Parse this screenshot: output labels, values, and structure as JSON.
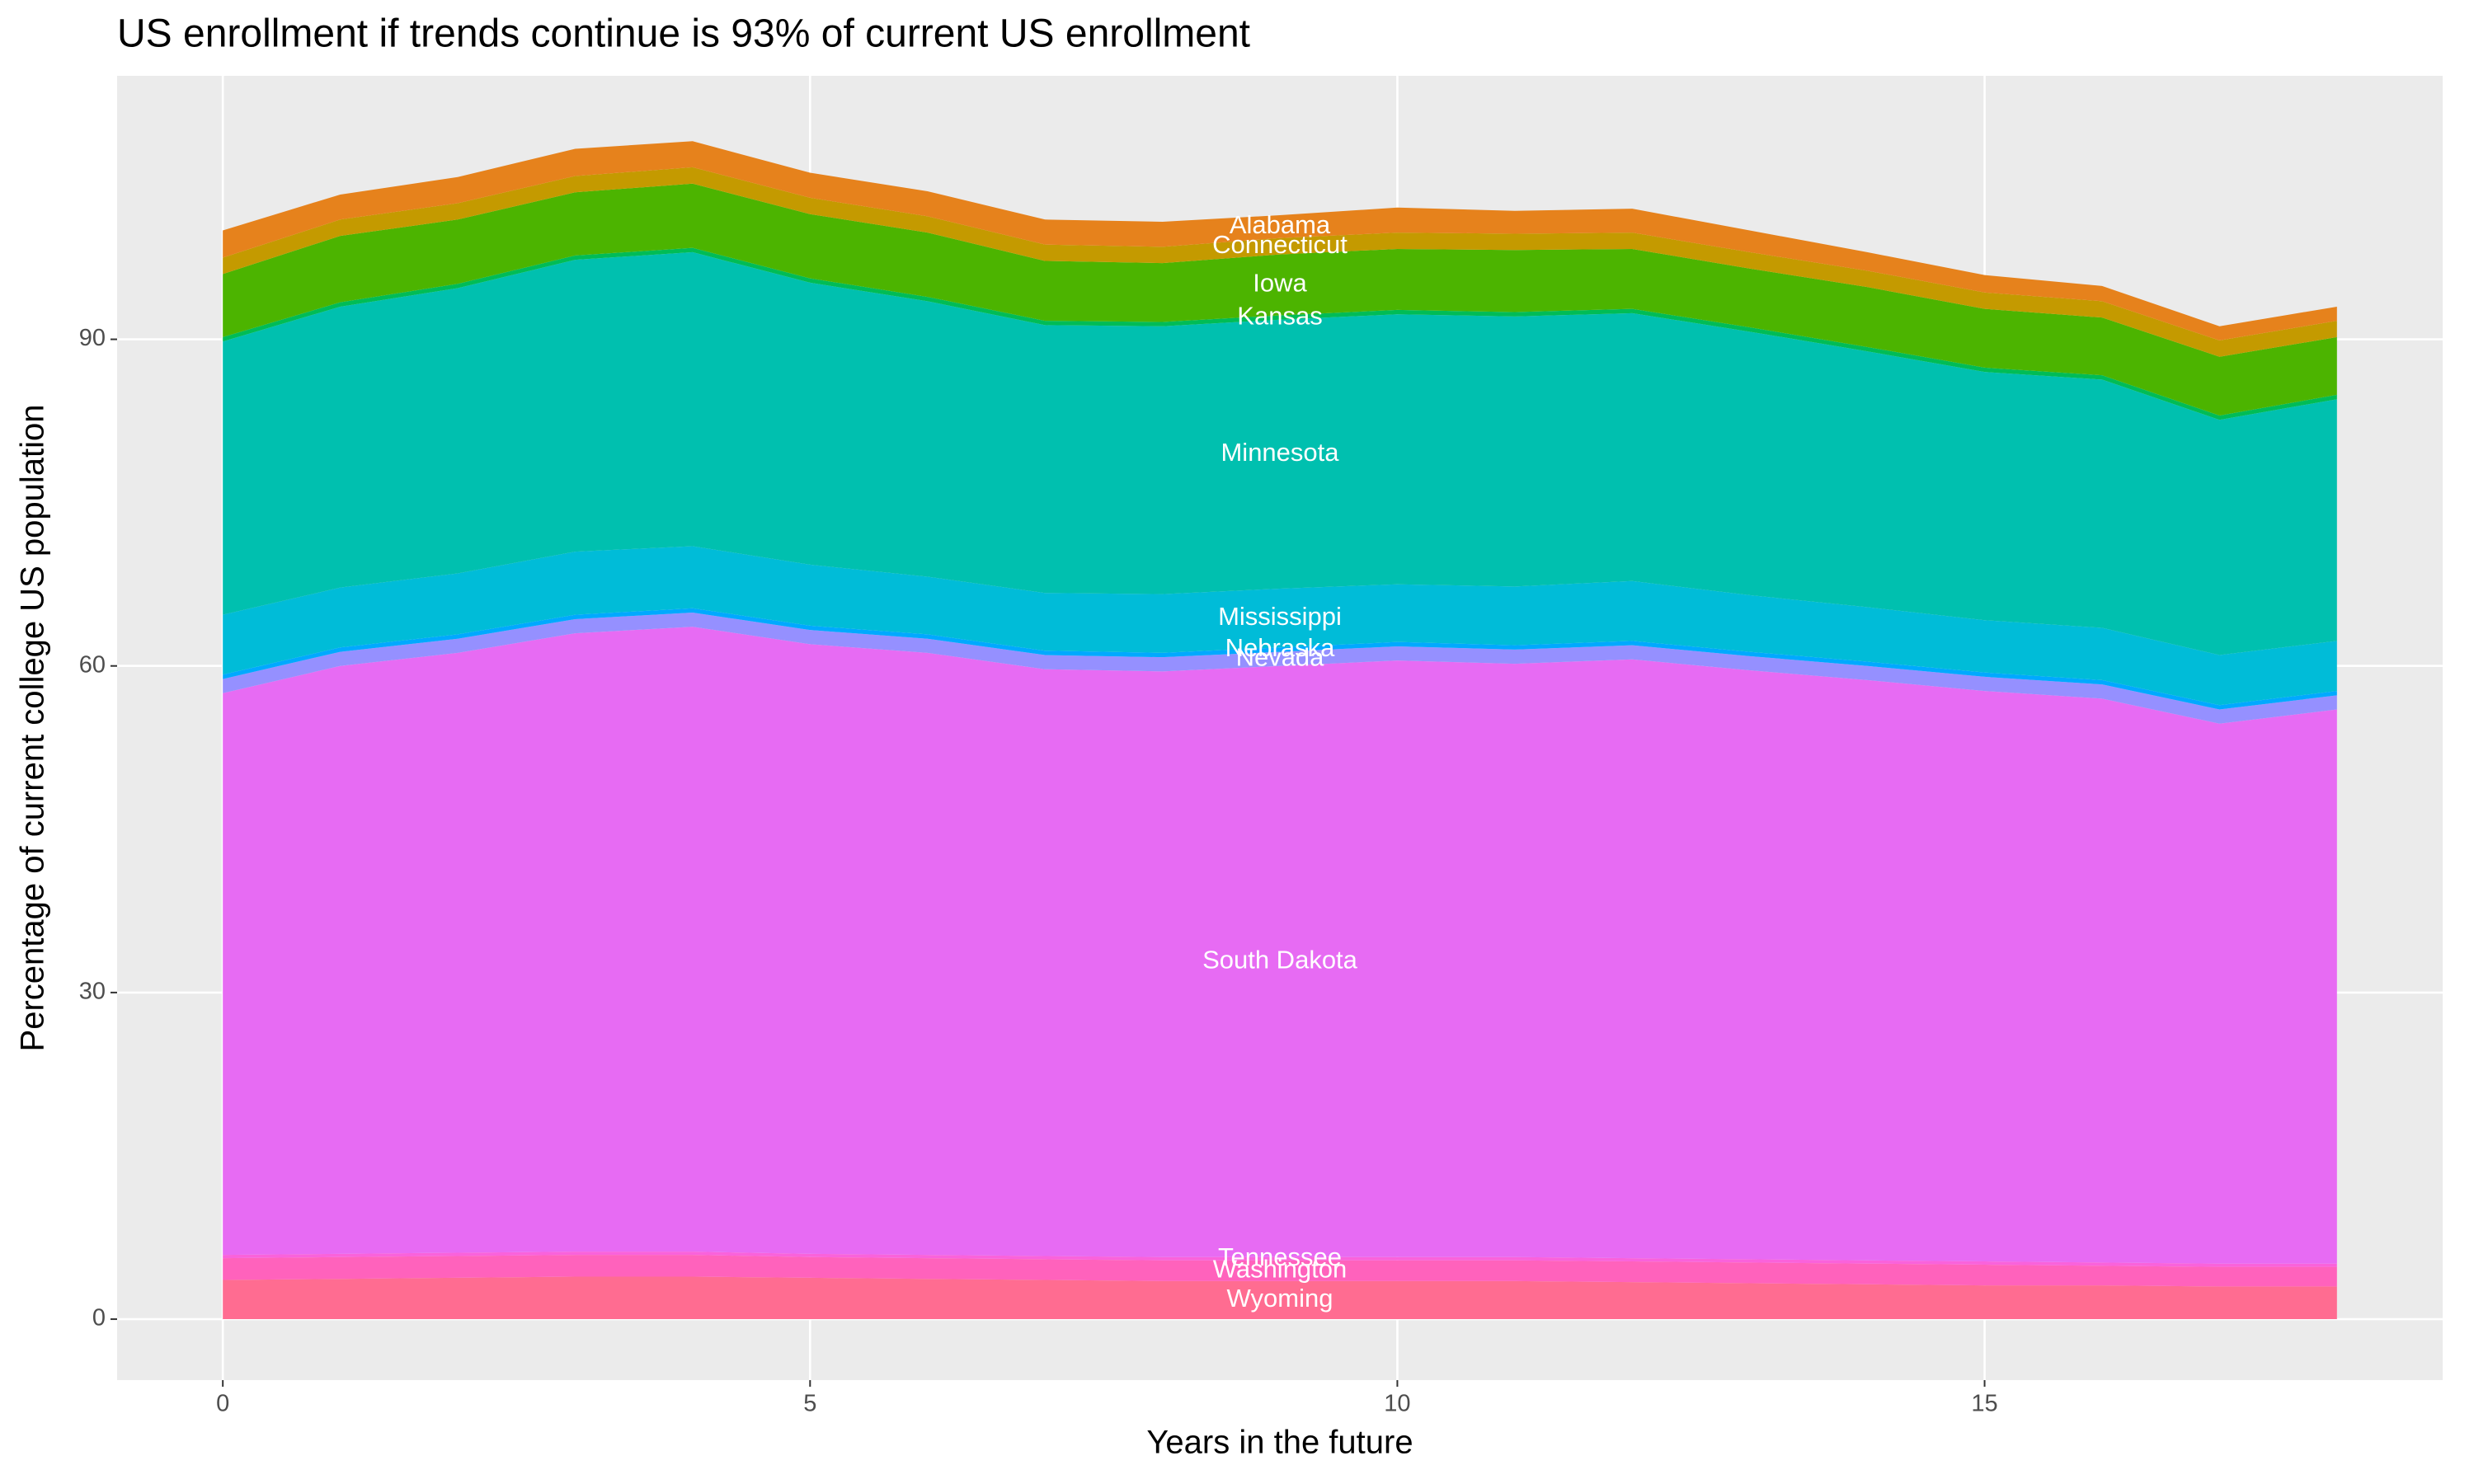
{
  "chart_data": {
    "type": "stacked_area",
    "title": "US enrollment if trends continue is 93% of current US enrollment",
    "x_label": "Years in the future",
    "y_label": "Percentage of current college US population",
    "x": [
      0,
      1,
      2,
      3,
      4,
      5,
      6,
      7,
      8,
      9,
      10,
      11,
      12,
      13,
      14,
      15,
      16,
      17,
      18
    ],
    "xlim": [
      -0.9,
      18.9
    ],
    "ylim": [
      -5.6,
      114.2
    ],
    "xticks": [
      0,
      5,
      10,
      15
    ],
    "yticks": [
      0,
      30,
      60,
      90
    ],
    "grid": true,
    "series": [
      {
        "name": "Wyoming",
        "color": "#FF6C91",
        "values": [
          3.6,
          3.7,
          3.8,
          3.9,
          3.9,
          3.8,
          3.7,
          3.6,
          3.5,
          3.5,
          3.5,
          3.5,
          3.4,
          3.3,
          3.2,
          3.1,
          3.1,
          3.0,
          3.0
        ]
      },
      {
        "name": "Washington",
        "color": "#FF62BC",
        "values": [
          2.0,
          2.0,
          2.0,
          2.0,
          2.0,
          1.9,
          1.9,
          1.9,
          1.9,
          1.9,
          1.9,
          1.9,
          1.9,
          1.9,
          1.9,
          1.9,
          1.8,
          1.8,
          1.8
        ]
      },
      {
        "name": "Tennessee",
        "color": "#FA62DB",
        "values": [
          0.3,
          0.3,
          0.3,
          0.3,
          0.3,
          0.3,
          0.3,
          0.3,
          0.3,
          0.3,
          0.3,
          0.3,
          0.3,
          0.3,
          0.3,
          0.3,
          0.3,
          0.3,
          0.3
        ]
      },
      {
        "name": "South Dakota",
        "color": "#E76BF3",
        "values": [
          51.6,
          54.0,
          55.1,
          56.8,
          57.4,
          56.0,
          55.3,
          53.9,
          53.8,
          54.3,
          54.8,
          54.5,
          55.0,
          54.1,
          53.3,
          52.4,
          51.8,
          49.6,
          50.9
        ]
      },
      {
        "name": "Nevada",
        "color": "#9590FF",
        "values": [
          1.3,
          1.3,
          1.3,
          1.3,
          1.3,
          1.3,
          1.3,
          1.3,
          1.3,
          1.3,
          1.3,
          1.3,
          1.3,
          1.3,
          1.3,
          1.3,
          1.3,
          1.3,
          1.3
        ]
      },
      {
        "name": "Nebraska",
        "color": "#00A9FF",
        "values": [
          0.4,
          0.4,
          0.4,
          0.4,
          0.4,
          0.4,
          0.4,
          0.4,
          0.4,
          0.4,
          0.4,
          0.4,
          0.4,
          0.4,
          0.4,
          0.4,
          0.4,
          0.4,
          0.4
        ]
      },
      {
        "name": "Mississippi",
        "color": "#00BCD8",
        "values": [
          5.5,
          5.5,
          5.6,
          5.8,
          5.7,
          5.6,
          5.3,
          5.3,
          5.4,
          5.4,
          5.3,
          5.4,
          5.5,
          5.2,
          5.0,
          4.8,
          4.8,
          4.6,
          4.6
        ]
      },
      {
        "name": "Minnesota",
        "color": "#00C0AF",
        "values": [
          25.1,
          25.8,
          26.2,
          26.8,
          27.0,
          25.9,
          25.3,
          24.6,
          24.6,
          24.7,
          24.8,
          24.8,
          24.6,
          24.2,
          23.5,
          22.8,
          22.8,
          21.6,
          22.2
        ]
      },
      {
        "name": "Kansas",
        "color": "#00BC56",
        "values": [
          0.4,
          0.4,
          0.4,
          0.4,
          0.4,
          0.4,
          0.4,
          0.4,
          0.4,
          0.4,
          0.4,
          0.4,
          0.4,
          0.4,
          0.4,
          0.4,
          0.4,
          0.4,
          0.4
        ]
      },
      {
        "name": "Iowa",
        "color": "#4CB400",
        "values": [
          5.8,
          6.1,
          5.9,
          5.8,
          5.9,
          5.9,
          5.9,
          5.5,
          5.4,
          5.6,
          5.6,
          5.7,
          5.5,
          5.4,
          5.5,
          5.4,
          5.3,
          5.4,
          5.3
        ]
      },
      {
        "name": "Connecticut",
        "color": "#C49A00",
        "values": [
          1.5,
          1.5,
          1.5,
          1.5,
          1.5,
          1.5,
          1.5,
          1.5,
          1.5,
          1.5,
          1.5,
          1.5,
          1.5,
          1.5,
          1.5,
          1.5,
          1.5,
          1.5,
          1.5
        ]
      },
      {
        "name": "Alabama",
        "color": "#E6821C",
        "values": [
          2.5,
          2.3,
          2.4,
          2.5,
          2.4,
          2.3,
          2.3,
          2.3,
          2.3,
          2.1,
          2.3,
          2.1,
          2.2,
          2.0,
          1.7,
          1.6,
          1.4,
          1.3,
          1.3
        ]
      }
    ]
  }
}
